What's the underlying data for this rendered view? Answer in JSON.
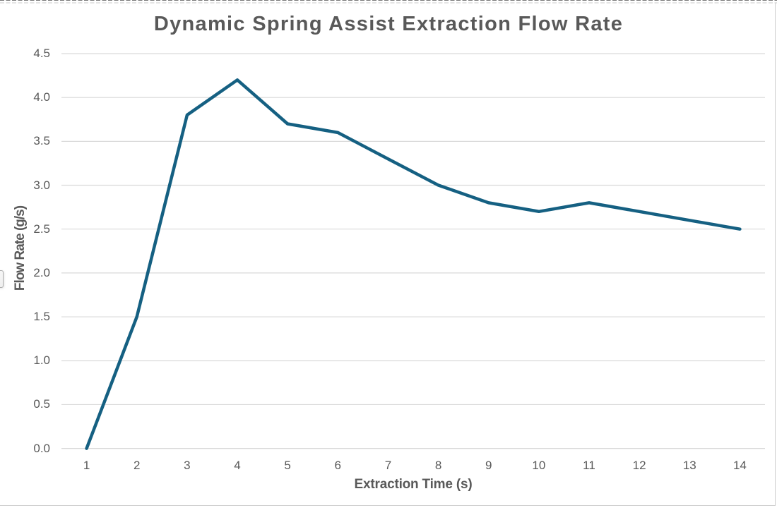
{
  "chart_data": {
    "type": "line",
    "title": "Dynamic Spring Assist Extraction Flow Rate",
    "xlabel": "Extraction Time (s)",
    "ylabel": "Flow Rate (g/s)",
    "categories": [
      1,
      2,
      3,
      4,
      5,
      6,
      7,
      8,
      9,
      10,
      11,
      12,
      13,
      14
    ],
    "values": [
      0.0,
      1.5,
      3.8,
      4.2,
      3.7,
      3.6,
      3.3,
      3.0,
      2.8,
      2.7,
      2.8,
      2.7,
      2.6,
      2.5
    ],
    "series_name": "Flow Rate (g/s)",
    "ylim": [
      0.0,
      4.5
    ],
    "ytick_step": 0.5,
    "ytick_decimals": 1,
    "grid": "horizontal",
    "legend": "none",
    "colors": {
      "line": "#156082",
      "gridline": "#d9d9d9",
      "text": "#595959",
      "chart_border": "#cfcfcf"
    }
  },
  "decorations": {
    "selection_ants_top": true,
    "partial_button_left": true
  }
}
